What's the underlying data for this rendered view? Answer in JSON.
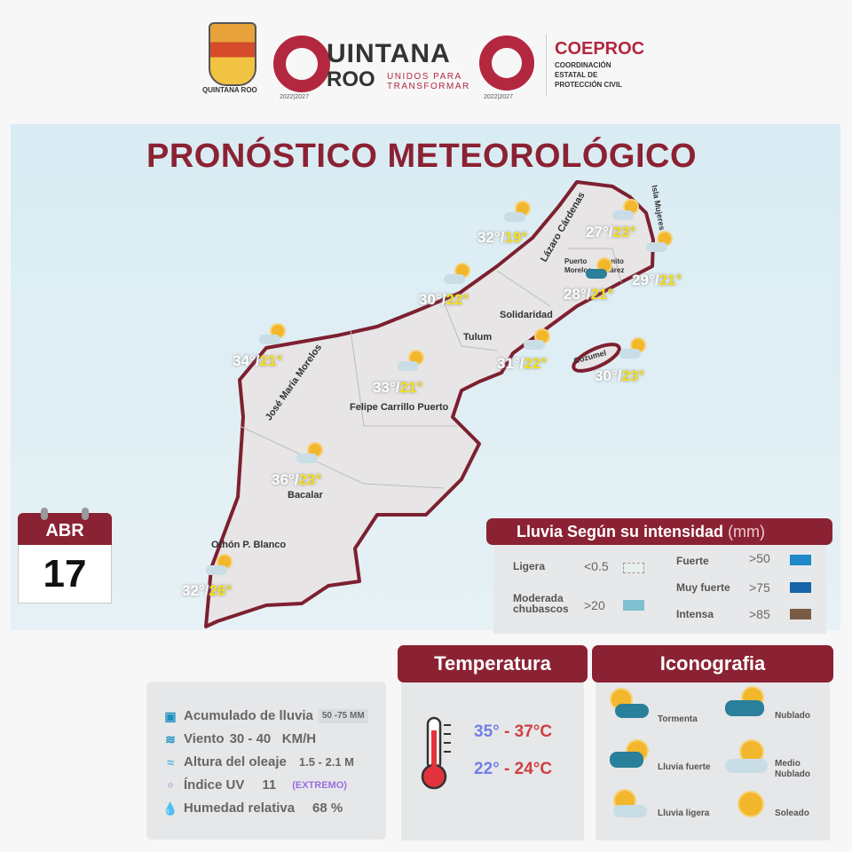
{
  "header": {
    "logos": [
      {
        "name": "quintana-roo-coat-of-arms",
        "text": "QUINTANA ROO"
      },
      {
        "name": "quintana-roo-logo",
        "text": "QUINTANA ROO",
        "tagline": "UNIDOS PARA TRANSFORMAR",
        "years": "2022|2027"
      },
      {
        "name": "q-logo",
        "years": "2022|2027"
      },
      {
        "name": "coeproc-logo",
        "title": "COEPROC",
        "subtitle": "COORDINACIÓN ESTATAL DE PROTECCIÓN CIVIL"
      }
    ]
  },
  "title": "PRONÓSTICO METEOROLÓGICO",
  "date": {
    "month": "ABR",
    "day": "17"
  },
  "map": {
    "labels": [
      "Lázaro Cárdenas",
      "Isla Mujeres",
      "Puerto Morelos",
      "Benito Juárez",
      "Solidaridad",
      "Tulum",
      "Cozumel",
      "José María Morelos",
      "Felipe Carrillo Puerto",
      "Bacalar",
      "Othón P. Blanco"
    ],
    "temps": [
      {
        "max": "32°",
        "min": "19°",
        "icon": "partly-cloudy"
      },
      {
        "max": "27°",
        "min": "23°",
        "icon": "partly-cloudy"
      },
      {
        "max": "29°",
        "min": "21°",
        "icon": "partly-cloudy"
      },
      {
        "max": "28°",
        "min": "21°",
        "icon": "storm"
      },
      {
        "max": "30°",
        "min": "22°",
        "icon": "partly-cloudy"
      },
      {
        "max": "31°",
        "min": "22°",
        "icon": "partly-cloudy"
      },
      {
        "max": "30°",
        "min": "23°",
        "icon": "partly-cloudy"
      },
      {
        "max": "34°",
        "min": "21°",
        "icon": "partly-cloudy"
      },
      {
        "max": "33°",
        "min": "21°",
        "icon": "partly-cloudy"
      },
      {
        "max": "36°",
        "min": "23°",
        "icon": "partly-cloudy"
      },
      {
        "max": "32°",
        "min": "26°",
        "icon": "partly-cloudy"
      }
    ]
  },
  "rain_legend": {
    "title": "Lluvia Según su intensidad",
    "unit": "(mm)",
    "items": [
      {
        "label": "Ligera",
        "value": "<0.5",
        "color": "#e6eeee"
      },
      {
        "label": "Moderada chubascos",
        "value": ">20",
        "color": "#7fbfcf"
      },
      {
        "label": "Fuerte",
        "value": ">50",
        "color": "#1e88c8"
      },
      {
        "label": "Muy fuerte",
        "value": ">75",
        "color": "#1565a8"
      },
      {
        "label": "Intensa",
        "value": ">85",
        "color": "#7a5c45"
      }
    ]
  },
  "info": {
    "rain": {
      "label": "Acumulado de lluvia",
      "value": "50 -75 MM"
    },
    "wind": {
      "label": "Viento",
      "value": "30 - 40   KM/H"
    },
    "waves": {
      "label": "Altura del oleaje",
      "value": "1.5 - 2.1 M"
    },
    "uv": {
      "label": "Índice UV",
      "value": "11",
      "level": "(EXTREMO)"
    },
    "humidity": {
      "label": "Humedad relativa",
      "value": "68 %"
    }
  },
  "temperature": {
    "title": "Temperatura",
    "max": {
      "low": "35°",
      "sep": " - ",
      "high": "37°C"
    },
    "min": {
      "low": "22°",
      "sep": " - ",
      "high": "24°C"
    }
  },
  "iconography": {
    "title": "Iconografia",
    "items": [
      "Tormenta",
      "Nublado",
      "Lluvia fuerte",
      "Medio Nublado",
      "Lluvia ligera",
      "Soleado"
    ]
  },
  "colors": {
    "brand": "#8b2233",
    "accent": "#b3283f",
    "min_temp": "#f4e01b"
  }
}
